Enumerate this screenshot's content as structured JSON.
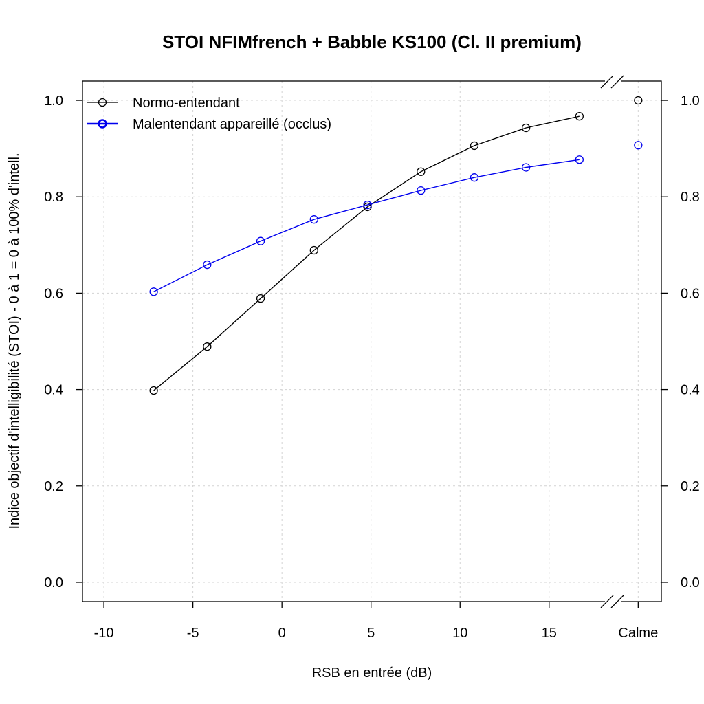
{
  "chart_data": {
    "type": "line",
    "title": "STOI NFIMfrench + Babble KS100 (Cl. II premium)",
    "xlabel": "RSB en entrée (dB)",
    "ylabel": "Indice objectif d'intelligibilité (STOI) - 0 à 1 = 0 à 100% d'intell.",
    "xlim": [
      -11.2,
      21.3
    ],
    "ylim": [
      -0.04,
      1.04
    ],
    "xticks": [
      -10,
      -5,
      0,
      5,
      10,
      15
    ],
    "xtick_labels": [
      "-10",
      "-5",
      "0",
      "5",
      "10",
      "15"
    ],
    "extra_tick": {
      "label": "Calme",
      "position": 20
    },
    "yticks": [
      0.0,
      0.2,
      0.4,
      0.6,
      0.8,
      1.0
    ],
    "ytick_labels": [
      "0.0",
      "0.2",
      "0.4",
      "0.6",
      "0.8",
      "1.0"
    ],
    "grid": true,
    "axis_break": "between 16.7 dB and Calme",
    "legend_position": "top-left",
    "x": [
      -7.2,
      -4.2,
      -1.2,
      1.8,
      4.8,
      7.8,
      10.8,
      13.7,
      16.7
    ],
    "series": [
      {
        "name": "Normo-entendant",
        "color": "#000000",
        "values": [
          0.398,
          0.489,
          0.589,
          0.689,
          0.779,
          0.852,
          0.906,
          0.943,
          0.967
        ],
        "calme_value": 1.0
      },
      {
        "name": "Malentendant appareillé (occlus)",
        "color": "#0000ee",
        "values": [
          0.603,
          0.659,
          0.708,
          0.753,
          0.783,
          0.813,
          0.84,
          0.861,
          0.877
        ],
        "calme_value": 0.907
      }
    ]
  }
}
